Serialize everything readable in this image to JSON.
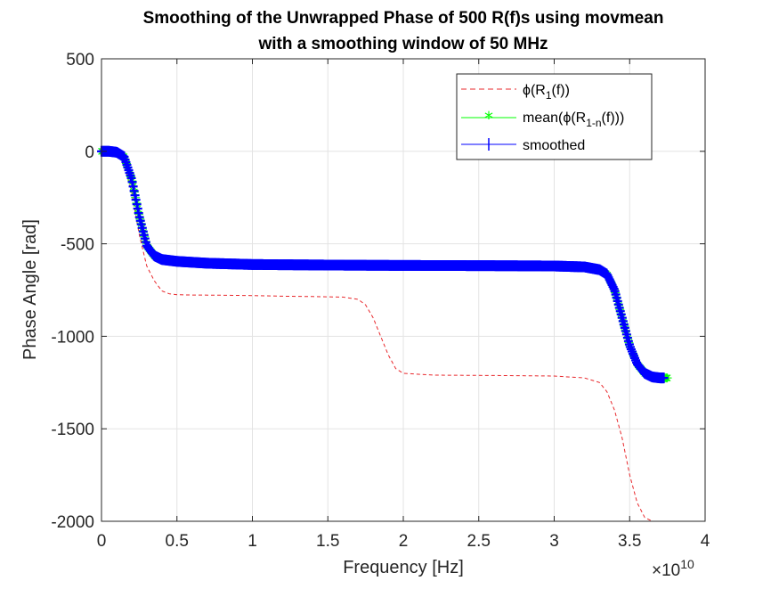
{
  "chart_data": {
    "type": "line",
    "title": [
      "Smoothing of the Unwrapped Phase of 500 R(f)s using movmean",
      "with a smoothing window of 50 MHz"
    ],
    "xlabel": "Frequency [Hz]",
    "ylabel": "Phase Angle [rad]",
    "x_exponent_label": "×10",
    "x_exponent_power": "10",
    "xlim": [
      0,
      4
    ],
    "ylim": [
      -2000,
      500
    ],
    "x_ticks": [
      0,
      0.5,
      1,
      1.5,
      2,
      2.5,
      3,
      3.5,
      4
    ],
    "x_tick_labels": [
      "0",
      "0.5",
      "1",
      "1.5",
      "2",
      "2.5",
      "3",
      "3.5",
      "4"
    ],
    "y_ticks": [
      500,
      0,
      -500,
      -1000,
      -1500,
      -2000
    ],
    "y_tick_labels": [
      "500",
      "0",
      "-500",
      "-1000",
      "-1500",
      "-2000"
    ],
    "grid": true,
    "legend_position": "top-right",
    "series": [
      {
        "legend_label": "ϕ(R1(f))",
        "color": "#e8272b",
        "style": "dashed",
        "x": [
          0,
          0.05,
          0.1,
          0.15,
          0.2,
          0.25,
          0.3,
          0.35,
          0.4,
          0.45,
          0.5,
          0.6,
          0.8,
          1.0,
          1.2,
          1.4,
          1.6,
          1.7,
          1.75,
          1.8,
          1.85,
          1.9,
          1.95,
          2.0,
          2.2,
          2.6,
          3.0,
          3.2,
          3.3,
          3.35,
          3.4,
          3.45,
          3.5,
          3.55,
          3.6,
          3.65,
          3.75
        ],
        "values": [
          0,
          0,
          -10,
          -70,
          -220,
          -450,
          -620,
          -700,
          -755,
          -770,
          -775,
          -777,
          -778,
          -780,
          -783,
          -785,
          -788,
          -800,
          -830,
          -900,
          -1000,
          -1100,
          -1175,
          -1200,
          -1210,
          -1212,
          -1215,
          -1225,
          -1250,
          -1300,
          -1400,
          -1550,
          -1750,
          -1900,
          -1980,
          -2000,
          -2000
        ]
      },
      {
        "legend_label": "mean(ϕ(R1-n(f)))",
        "color": "#00ff00",
        "style": "solid-star",
        "x": [
          0,
          0.05,
          0.1,
          0.15,
          0.2,
          0.25,
          0.3,
          0.35,
          0.4,
          0.5,
          0.7,
          1.0,
          1.5,
          2.0,
          2.5,
          3.0,
          3.2,
          3.3,
          3.35,
          3.4,
          3.45,
          3.5,
          3.55,
          3.6,
          3.65,
          3.7,
          3.75
        ],
        "values": [
          0,
          0,
          -5,
          -30,
          -150,
          -350,
          -510,
          -565,
          -585,
          -595,
          -605,
          -612,
          -615,
          -617,
          -618,
          -620,
          -625,
          -640,
          -665,
          -750,
          -900,
          -1050,
          -1150,
          -1200,
          -1220,
          -1225,
          -1225
        ]
      },
      {
        "legend_label": "smoothed",
        "color": "#0000ff",
        "style": "solid-plus",
        "x": [
          0,
          0.05,
          0.1,
          0.15,
          0.2,
          0.25,
          0.3,
          0.35,
          0.4,
          0.5,
          0.7,
          1.0,
          1.5,
          2.0,
          2.5,
          3.0,
          3.2,
          3.3,
          3.35,
          3.4,
          3.45,
          3.5,
          3.55,
          3.6,
          3.65,
          3.7,
          3.75
        ],
        "values": [
          0,
          0,
          -5,
          -30,
          -150,
          -350,
          -510,
          -565,
          -585,
          -595,
          -605,
          -612,
          -615,
          -617,
          -618,
          -620,
          -625,
          -640,
          -665,
          -750,
          -900,
          -1050,
          -1150,
          -1200,
          -1220,
          -1225,
          -1225
        ]
      }
    ]
  },
  "legend": {
    "entry1_text": "ϕ(R",
    "entry1_sub": "1",
    "entry1_tail": "(f))",
    "entry2_text": "mean(ϕ(R",
    "entry2_sub": "1-n",
    "entry2_tail": "(f)))",
    "entry3_text": "smoothed"
  }
}
